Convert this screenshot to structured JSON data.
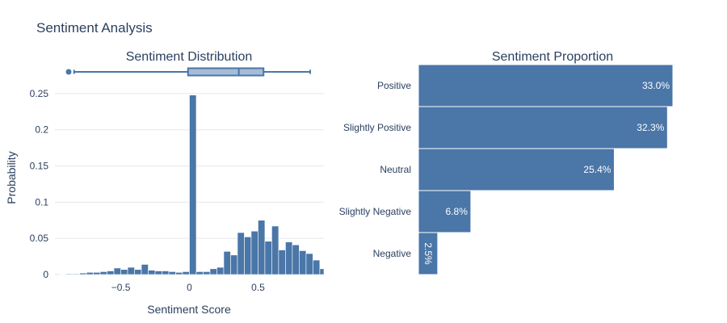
{
  "title": "Sentiment Analysis",
  "colors": {
    "bar": "#4a76a8",
    "bar_edge": "#ffffff",
    "box_fill": "#a6bcd8",
    "box_line": "#4a76a8",
    "grid": "#e5e8ee",
    "text": "#2a3f5f"
  },
  "chart_data": [
    {
      "type": "histogram",
      "title": "Sentiment Distribution",
      "xlabel": "Sentiment Score",
      "ylabel": "Probability",
      "xlim": [
        -0.98,
        0.98
      ],
      "ylim": [
        0,
        0.27
      ],
      "xticks": [
        -0.5,
        0,
        0.5
      ],
      "xtick_labels": [
        "−0.5",
        "0",
        "0.5"
      ],
      "yticks": [
        0,
        0.05,
        0.1,
        0.15,
        0.2,
        0.25
      ],
      "ytick_labels": [
        "0",
        "0.05",
        "0.1",
        "0.15",
        "0.2",
        "0.25"
      ],
      "bin_width": 0.05,
      "bins": [
        {
          "x0": -0.95,
          "p": 0.0005
        },
        {
          "x0": -0.9,
          "p": 0.001
        },
        {
          "x0": -0.85,
          "p": 0.001
        },
        {
          "x0": -0.8,
          "p": 0.002
        },
        {
          "x0": -0.75,
          "p": 0.003
        },
        {
          "x0": -0.7,
          "p": 0.003
        },
        {
          "x0": -0.65,
          "p": 0.004
        },
        {
          "x0": -0.6,
          "p": 0.005
        },
        {
          "x0": -0.55,
          "p": 0.009
        },
        {
          "x0": -0.5,
          "p": 0.007
        },
        {
          "x0": -0.45,
          "p": 0.01
        },
        {
          "x0": -0.4,
          "p": 0.007
        },
        {
          "x0": -0.35,
          "p": 0.014
        },
        {
          "x0": -0.3,
          "p": 0.006
        },
        {
          "x0": -0.25,
          "p": 0.005
        },
        {
          "x0": -0.2,
          "p": 0.005
        },
        {
          "x0": -0.15,
          "p": 0.004
        },
        {
          "x0": -0.1,
          "p": 0.003
        },
        {
          "x0": -0.05,
          "p": 0.004
        },
        {
          "x0": 0.0,
          "p": 0.248
        },
        {
          "x0": 0.05,
          "p": 0.004
        },
        {
          "x0": 0.1,
          "p": 0.004
        },
        {
          "x0": 0.15,
          "p": 0.008
        },
        {
          "x0": 0.2,
          "p": 0.01
        },
        {
          "x0": 0.25,
          "p": 0.032
        },
        {
          "x0": 0.3,
          "p": 0.027
        },
        {
          "x0": 0.35,
          "p": 0.058
        },
        {
          "x0": 0.4,
          "p": 0.052
        },
        {
          "x0": 0.45,
          "p": 0.06
        },
        {
          "x0": 0.5,
          "p": 0.075
        },
        {
          "x0": 0.55,
          "p": 0.046
        },
        {
          "x0": 0.6,
          "p": 0.067
        },
        {
          "x0": 0.65,
          "p": 0.034
        },
        {
          "x0": 0.7,
          "p": 0.045
        },
        {
          "x0": 0.75,
          "p": 0.041
        },
        {
          "x0": 0.8,
          "p": 0.033
        },
        {
          "x0": 0.85,
          "p": 0.029
        },
        {
          "x0": 0.9,
          "p": 0.02
        },
        {
          "x0": 0.95,
          "p": 0.008
        }
      ],
      "box": {
        "min": -0.84,
        "q1": -0.01,
        "median": 0.36,
        "q3": 0.54,
        "max": 0.88,
        "outliers": [
          -0.88
        ]
      }
    },
    {
      "type": "bar",
      "orientation": "horizontal",
      "title": "Sentiment Proportion",
      "categories": [
        "Positive",
        "Slightly Positive",
        "Neutral",
        "Slightly Negative",
        "Negative"
      ],
      "values": [
        33.0,
        32.3,
        25.4,
        6.8,
        2.5
      ],
      "labels": [
        "33.0%",
        "32.3%",
        "25.4%",
        "6.8%",
        "2.5%"
      ],
      "xlim": [
        0,
        33.0
      ]
    }
  ]
}
